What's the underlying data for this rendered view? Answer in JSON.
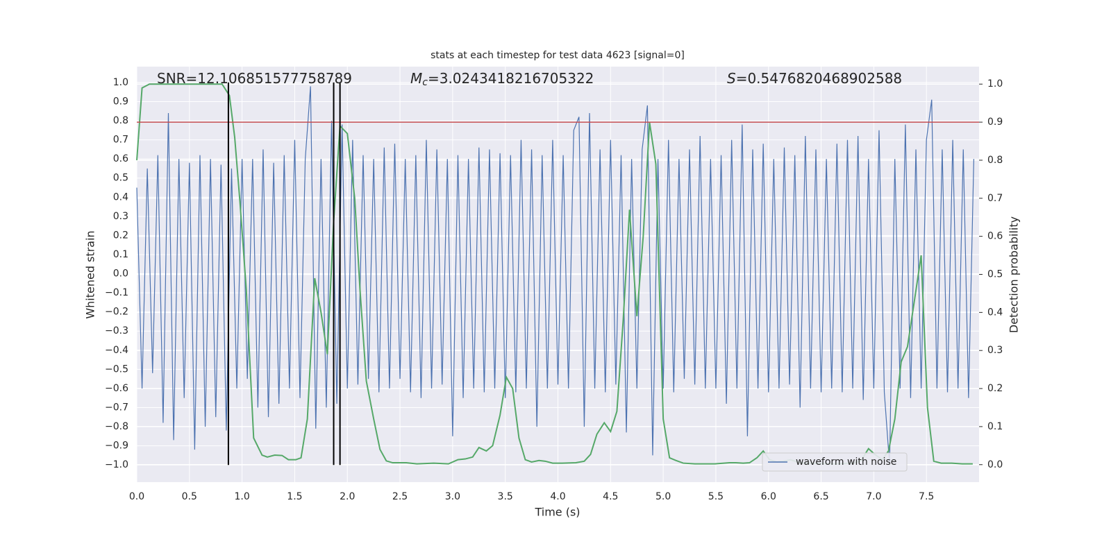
{
  "chart_data": {
    "type": "line",
    "title": "stats at each timestep for test data 4623 [signal=0]",
    "xlabel": "Time (s)",
    "ylabel": "Whitened strain",
    "y2label": "Detection probability",
    "xlim": [
      0,
      8
    ],
    "ylim": [
      -1.09,
      1.083
    ],
    "y2lim": [
      -0.046,
      1.046
    ],
    "xticks": [
      {
        "value": 0,
        "label": "0.0"
      },
      0.5,
      {
        "value": 1,
        "label": "1.0"
      },
      1.5,
      {
        "value": 2,
        "label": "2.0"
      },
      2.5,
      {
        "value": 3,
        "label": "3.0"
      },
      3.5,
      {
        "value": 4,
        "label": "4.0"
      },
      4.5,
      {
        "value": 5,
        "label": "5.0"
      },
      5.5,
      {
        "value": 6,
        "label": "6.0"
      },
      6.5,
      {
        "value": 7,
        "label": "7.0"
      },
      7.5
    ],
    "yticks": [
      {
        "value": -1,
        "label": "−1.0"
      },
      {
        "value": -0.9,
        "label": "−0.9"
      },
      {
        "value": -0.8,
        "label": "−0.8"
      },
      {
        "value": -0.7,
        "label": "−0.7"
      },
      {
        "value": -0.6,
        "label": "−0.6"
      },
      {
        "value": -0.5,
        "label": "−0.5"
      },
      {
        "value": -0.4,
        "label": "−0.4"
      },
      {
        "value": -0.3,
        "label": "−0.3"
      },
      {
        "value": -0.2,
        "label": "−0.2"
      },
      {
        "value": -0.1,
        "label": "−0.1"
      },
      {
        "value": 0,
        "label": "0.0"
      },
      0.1,
      0.2,
      0.3,
      0.4,
      0.5,
      0.6,
      0.7,
      0.8,
      0.9,
      {
        "value": 1,
        "label": "1.0"
      }
    ],
    "y2ticks": [
      {
        "value": 0,
        "label": "0.0"
      },
      0.1,
      0.2,
      0.3,
      0.4,
      0.5,
      0.6,
      0.7,
      0.8,
      0.9,
      {
        "value": 1,
        "label": "1.0"
      }
    ],
    "grid": true,
    "legend": "lower right",
    "series": [
      {
        "name": "waveform with noise",
        "color": "#4c72b0",
        "x": [
          0,
          0.05,
          0.1,
          0.15,
          0.2,
          0.25,
          0.3,
          0.35,
          0.4,
          0.45,
          0.5,
          0.55,
          0.6,
          0.65,
          0.7,
          0.75,
          0.8,
          0.85,
          0.9,
          0.95,
          1,
          1.05,
          1.1,
          1.15,
          1.2,
          1.25,
          1.3,
          1.35,
          1.4,
          1.45,
          1.5,
          1.55,
          1.6,
          1.65,
          1.7,
          1.75,
          1.8,
          1.85,
          1.9,
          1.95,
          2,
          2.05,
          2.1,
          2.15,
          2.2,
          2.25,
          2.3,
          2.35,
          2.4,
          2.45,
          2.5,
          2.55,
          2.6,
          2.65,
          2.7,
          2.75,
          2.8,
          2.85,
          2.9,
          2.95,
          3,
          3.05,
          3.1,
          3.15,
          3.2,
          3.25,
          3.3,
          3.35,
          3.4,
          3.45,
          3.5,
          3.55,
          3.6,
          3.65,
          3.7,
          3.75,
          3.8,
          3.85,
          3.9,
          3.95,
          4,
          4.05,
          4.1,
          4.15,
          4.2,
          4.25,
          4.3,
          4.35,
          4.4,
          4.45,
          4.5,
          4.55,
          4.6,
          4.65,
          4.7,
          4.75,
          4.8,
          4.85,
          4.9,
          4.95,
          5,
          5.05,
          5.1,
          5.15,
          5.2,
          5.25,
          5.3,
          5.35,
          5.4,
          5.45,
          5.5,
          5.55,
          5.6,
          5.65,
          5.7,
          5.75,
          5.8,
          5.85,
          5.9,
          5.95,
          6,
          6.05,
          6.1,
          6.15,
          6.2,
          6.25,
          6.3,
          6.35,
          6.4,
          6.45,
          6.5,
          6.55,
          6.6,
          6.65,
          6.7,
          6.75,
          6.8,
          6.85,
          6.9,
          6.95,
          7,
          7.05,
          7.1,
          7.15,
          7.2,
          7.25,
          7.3,
          7.35,
          7.4,
          7.45,
          7.5,
          7.55,
          7.6,
          7.65,
          7.7,
          7.75,
          7.8,
          7.85,
          7.9,
          7.95
        ],
        "values": [
          0.45,
          -0.6,
          0.55,
          -0.52,
          0.62,
          -0.78,
          0.84,
          -0.87,
          0.6,
          -0.65,
          0.58,
          -0.92,
          0.62,
          -0.8,
          0.6,
          -0.75,
          0.57,
          -0.82,
          0.55,
          -0.6,
          0.6,
          -0.55,
          0.6,
          -0.7,
          0.65,
          -0.75,
          0.58,
          -0.68,
          0.62,
          -0.6,
          0.7,
          -0.65,
          0.6,
          0.98,
          -0.81,
          0.6,
          -0.7,
          0.8,
          -0.68,
          0.78,
          -0.6,
          0.7,
          -0.58,
          0.62,
          -0.55,
          0.6,
          -0.62,
          0.66,
          -0.6,
          0.68,
          -0.55,
          0.6,
          -0.62,
          0.62,
          -0.65,
          0.7,
          -0.6,
          0.65,
          -0.58,
          0.6,
          -0.85,
          0.62,
          -0.65,
          0.6,
          -0.6,
          0.66,
          -0.62,
          0.65,
          -0.6,
          0.63,
          -0.65,
          0.62,
          -0.62,
          0.7,
          -0.6,
          0.65,
          -0.8,
          0.62,
          -0.6,
          0.7,
          -0.58,
          0.62,
          -0.6,
          0.75,
          0.82,
          -0.8,
          0.84,
          -0.6,
          0.65,
          -0.62,
          0.7,
          -0.58,
          0.62,
          -0.83,
          0.6,
          -0.6,
          0.65,
          0.88,
          -0.95,
          0.6,
          -0.6,
          0.7,
          -0.62,
          0.6,
          -0.55,
          0.65,
          -0.58,
          0.72,
          -0.6,
          0.6,
          -0.6,
          0.62,
          -0.68,
          0.7,
          -0.6,
          0.78,
          -0.85,
          0.65,
          -0.6,
          0.68,
          -0.62,
          0.6,
          -0.6,
          0.66,
          -0.58,
          0.62,
          -0.7,
          0.72,
          -0.6,
          0.65,
          -0.62,
          0.6,
          -0.6,
          0.68,
          -0.62,
          0.7,
          -0.6,
          0.72,
          -0.66,
          0.6,
          -0.6,
          0.75,
          -0.62,
          -1.0,
          0.6,
          -0.6,
          0.78,
          -0.65,
          0.65,
          -0.6,
          0.7,
          0.91,
          -0.6,
          0.65,
          -0.62,
          0.7,
          -0.6,
          0.65,
          -0.65,
          0.6
        ]
      },
      {
        "color": "#55a868",
        "axis": "y2",
        "x": [
          0,
          0.05,
          0.12,
          0.81,
          0.88,
          0.93,
          0.98,
          1.04,
          1.11,
          1.19,
          1.24,
          1.31,
          1.38,
          1.44,
          1.51,
          1.56,
          1.62,
          1.69,
          1.75,
          1.81,
          1.87,
          1.93,
          2.0,
          2.07,
          2.12,
          2.18,
          2.25,
          2.31,
          2.37,
          2.43,
          2.56,
          2.66,
          2.82,
          2.96,
          3.05,
          3.12,
          3.19,
          3.25,
          3.32,
          3.38,
          3.45,
          3.51,
          3.57,
          3.63,
          3.69,
          3.75,
          3.82,
          3.88,
          3.95,
          4.04,
          4.17,
          4.25,
          4.31,
          4.37,
          4.44,
          4.5,
          4.56,
          4.62,
          4.68,
          4.75,
          4.81,
          4.87,
          4.93,
          5.0,
          5.06,
          5.12,
          5.19,
          5.3,
          5.49,
          5.63,
          5.69,
          5.76,
          5.82,
          5.89,
          5.95,
          6.01,
          6.08,
          6.14,
          6.21,
          6.27,
          6.35,
          6.62,
          6.81,
          6.88,
          6.95,
          7.01,
          7.08,
          7.14,
          7.2,
          7.26,
          7.32,
          7.38,
          7.45,
          7.51,
          7.57,
          7.64,
          7.74,
          7.84,
          7.94
        ],
        "values": [
          0.8,
          0.99,
          1.0,
          1.0,
          0.97,
          0.86,
          0.69,
          0.46,
          0.07,
          0.025,
          0.02,
          0.025,
          0.024,
          0.013,
          0.013,
          0.018,
          0.12,
          0.49,
          0.4,
          0.29,
          0.64,
          0.89,
          0.87,
          0.7,
          0.46,
          0.22,
          0.12,
          0.04,
          0.01,
          0.005,
          0.005,
          0.002,
          0.004,
          0.002,
          0.013,
          0.015,
          0.02,
          0.045,
          0.036,
          0.05,
          0.13,
          0.23,
          0.2,
          0.07,
          0.013,
          0.007,
          0.011,
          0.009,
          0.004,
          0.004,
          0.005,
          0.009,
          0.027,
          0.08,
          0.11,
          0.087,
          0.14,
          0.38,
          0.67,
          0.39,
          0.6,
          0.9,
          0.79,
          0.12,
          0.018,
          0.011,
          0.004,
          0.002,
          0.002,
          0.005,
          0.005,
          0.004,
          0.005,
          0.018,
          0.036,
          0.013,
          0.007,
          0.009,
          0.013,
          0.007,
          0.004,
          0.002,
          0.004,
          0.011,
          0.042,
          0.027,
          0.013,
          0.036,
          0.12,
          0.27,
          0.31,
          0.42,
          0.55,
          0.15,
          0.009,
          0.004,
          0.004,
          0.002,
          0.002
        ]
      }
    ],
    "hlines": [
      {
        "value": 0.9,
        "axis": "y2",
        "color": "#c44e52"
      }
    ],
    "vlines": {
      "x": [
        0.87,
        1.87,
        1.93
      ],
      "ymin": -1,
      "ymax": 1,
      "color": "#000000"
    },
    "annotations": [
      {
        "text": "SNR=12.106851577758789"
      },
      {
        "symbol": "M",
        "sub": "c",
        "text": "=3.0243418216705322"
      },
      {
        "symbol": "S",
        "text": "=0.5476820468902588"
      }
    ]
  }
}
